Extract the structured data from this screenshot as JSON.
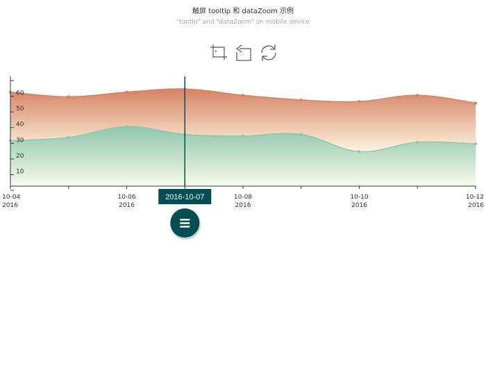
{
  "title": "触屏 tooltip 和 dataZoom 示例",
  "subtitle": "\"tootip\" and \"dataZoom\" on mobile device",
  "toolbox": {
    "icons": [
      "zoom-area-icon",
      "zoom-reset-icon",
      "restore-icon"
    ]
  },
  "colors": {
    "series_top": "#d68262",
    "series_top_fade": "#fdf5e1",
    "series_bottom": "#8ec6ad",
    "series_bottom_fade": "#f7fbe9",
    "pointer": "#004e52",
    "handle": "#004e52"
  },
  "tooltip": {
    "label": "2016-10-07"
  },
  "chart_data": {
    "type": "area",
    "x": [
      "2016-10-04",
      "2016-10-05",
      "2016-10-06",
      "2016-10-07",
      "2016-10-08",
      "2016-10-09",
      "2016-10-10",
      "2016-10-11",
      "2016-10-12"
    ],
    "x_ticks": [
      {
        "date": "2016-10-04",
        "line1": "10-04",
        "line2": "2016"
      },
      {
        "date": "2016-10-06",
        "line1": "10-06",
        "line2": "2016"
      },
      {
        "date": "2016-10-08",
        "line1": "10-08",
        "line2": "2016"
      },
      {
        "date": "2016-10-10",
        "line1": "10-10",
        "line2": "2016"
      },
      {
        "date": "2016-10-12",
        "line1": "10-12",
        "line2": "2016"
      }
    ],
    "y_ticks": [
      "10",
      "20",
      "30",
      "40",
      "50",
      "60"
    ],
    "ylim": [
      0,
      70
    ],
    "stacked": true,
    "series": [
      {
        "values": [
          29,
          31,
          38,
          33,
          32,
          33,
          22,
          28,
          27
        ]
      },
      {
        "values": [
          31,
          26,
          22,
          29,
          26,
          22,
          32,
          30,
          26
        ]
      }
    ],
    "pointer_date": "2016-10-07",
    "grid": false
  }
}
